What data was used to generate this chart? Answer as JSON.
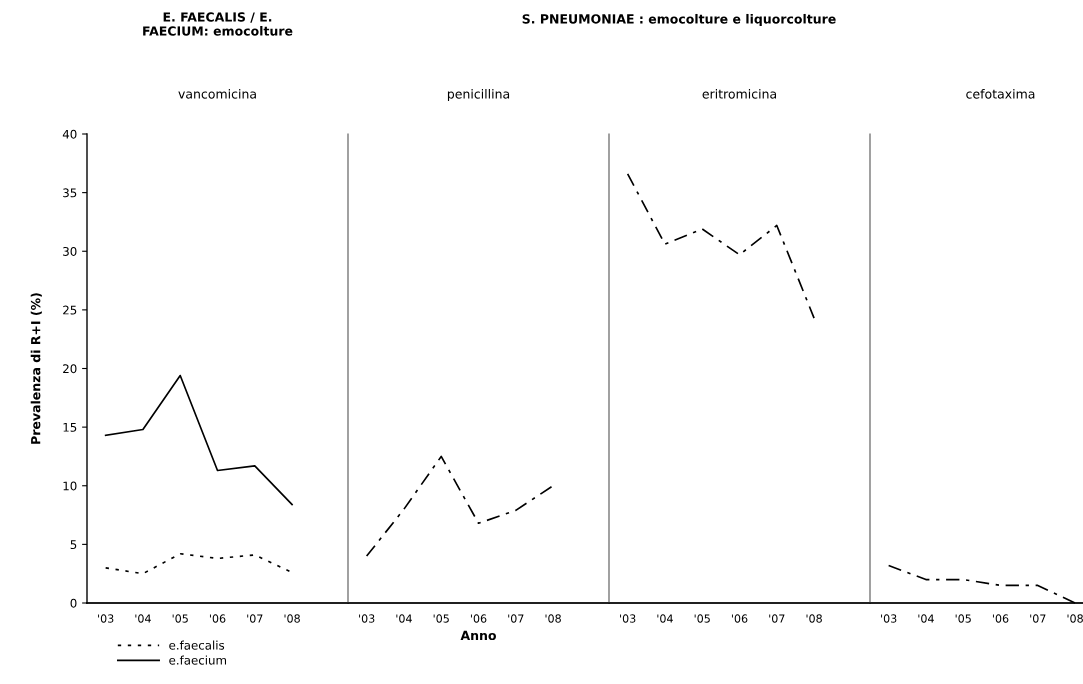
{
  "chart_data": [
    {
      "type": "line",
      "title": "E. FAECALIS / E. FAECIUM: emocolture",
      "subtitle": "vancomicina",
      "ylabel": "Prevalenza di R+I (%)",
      "categories": [
        "'03",
        "'04",
        "'05",
        "'06",
        "'07",
        "'08"
      ],
      "ylim": [
        0,
        40
      ],
      "yticks": [
        0,
        5,
        10,
        15,
        20,
        25,
        30,
        35,
        40
      ],
      "legend": "bottom left",
      "grid": false,
      "marker": "none",
      "series": [
        {
          "name": "e.faecalis",
          "color": "#000000",
          "line_style": "dotted",
          "values": [
            3.0,
            2.5,
            4.2,
            3.8,
            4.1,
            2.6
          ]
        },
        {
          "name": "e.faecium",
          "color": "#000000",
          "line_style": "solid",
          "values": [
            14.3,
            14.8,
            19.4,
            11.3,
            11.7,
            8.4
          ]
        }
      ]
    },
    {
      "type": "line",
      "subtitle": "penicillina",
      "xlabel": "Anno",
      "categories": [
        "'03",
        "'04",
        "'05",
        "'06",
        "'07",
        "'08"
      ],
      "ylim": [
        0,
        40
      ],
      "tick_labels": "x",
      "grid": false,
      "marker": "none",
      "series": [
        {
          "color": "#000000",
          "line_style": "dashdot",
          "values": [
            4.0,
            8.0,
            12.5,
            6.8,
            7.9,
            10.0
          ]
        }
      ]
    },
    {
      "type": "line",
      "title": "S. PNEUMONIAE : emocolture e liquorcolture",
      "subtitle": "eritromicina",
      "categories": [
        "'03",
        "'04",
        "'05",
        "'06",
        "'07",
        "'08"
      ],
      "ylim": [
        0,
        40
      ],
      "tick_labels": "x",
      "grid": false,
      "marker": "none",
      "series": [
        {
          "color": "#000000",
          "line_style": "dashdot",
          "values": [
            36.6,
            30.6,
            31.9,
            29.7,
            32.2,
            24.3
          ]
        }
      ]
    },
    {
      "type": "line",
      "subtitle": "cefotaxima",
      "categories": [
        "'03",
        "'04",
        "'05",
        "'06",
        "'07",
        "'08"
      ],
      "ylim": [
        0,
        40
      ],
      "tick_labels": "x",
      "grid": false,
      "marker": "none",
      "series": [
        {
          "color": "#000000",
          "line_style": "dashdot",
          "values": [
            3.2,
            2.0,
            2.0,
            1.5,
            1.5,
            0.0
          ]
        }
      ]
    }
  ]
}
